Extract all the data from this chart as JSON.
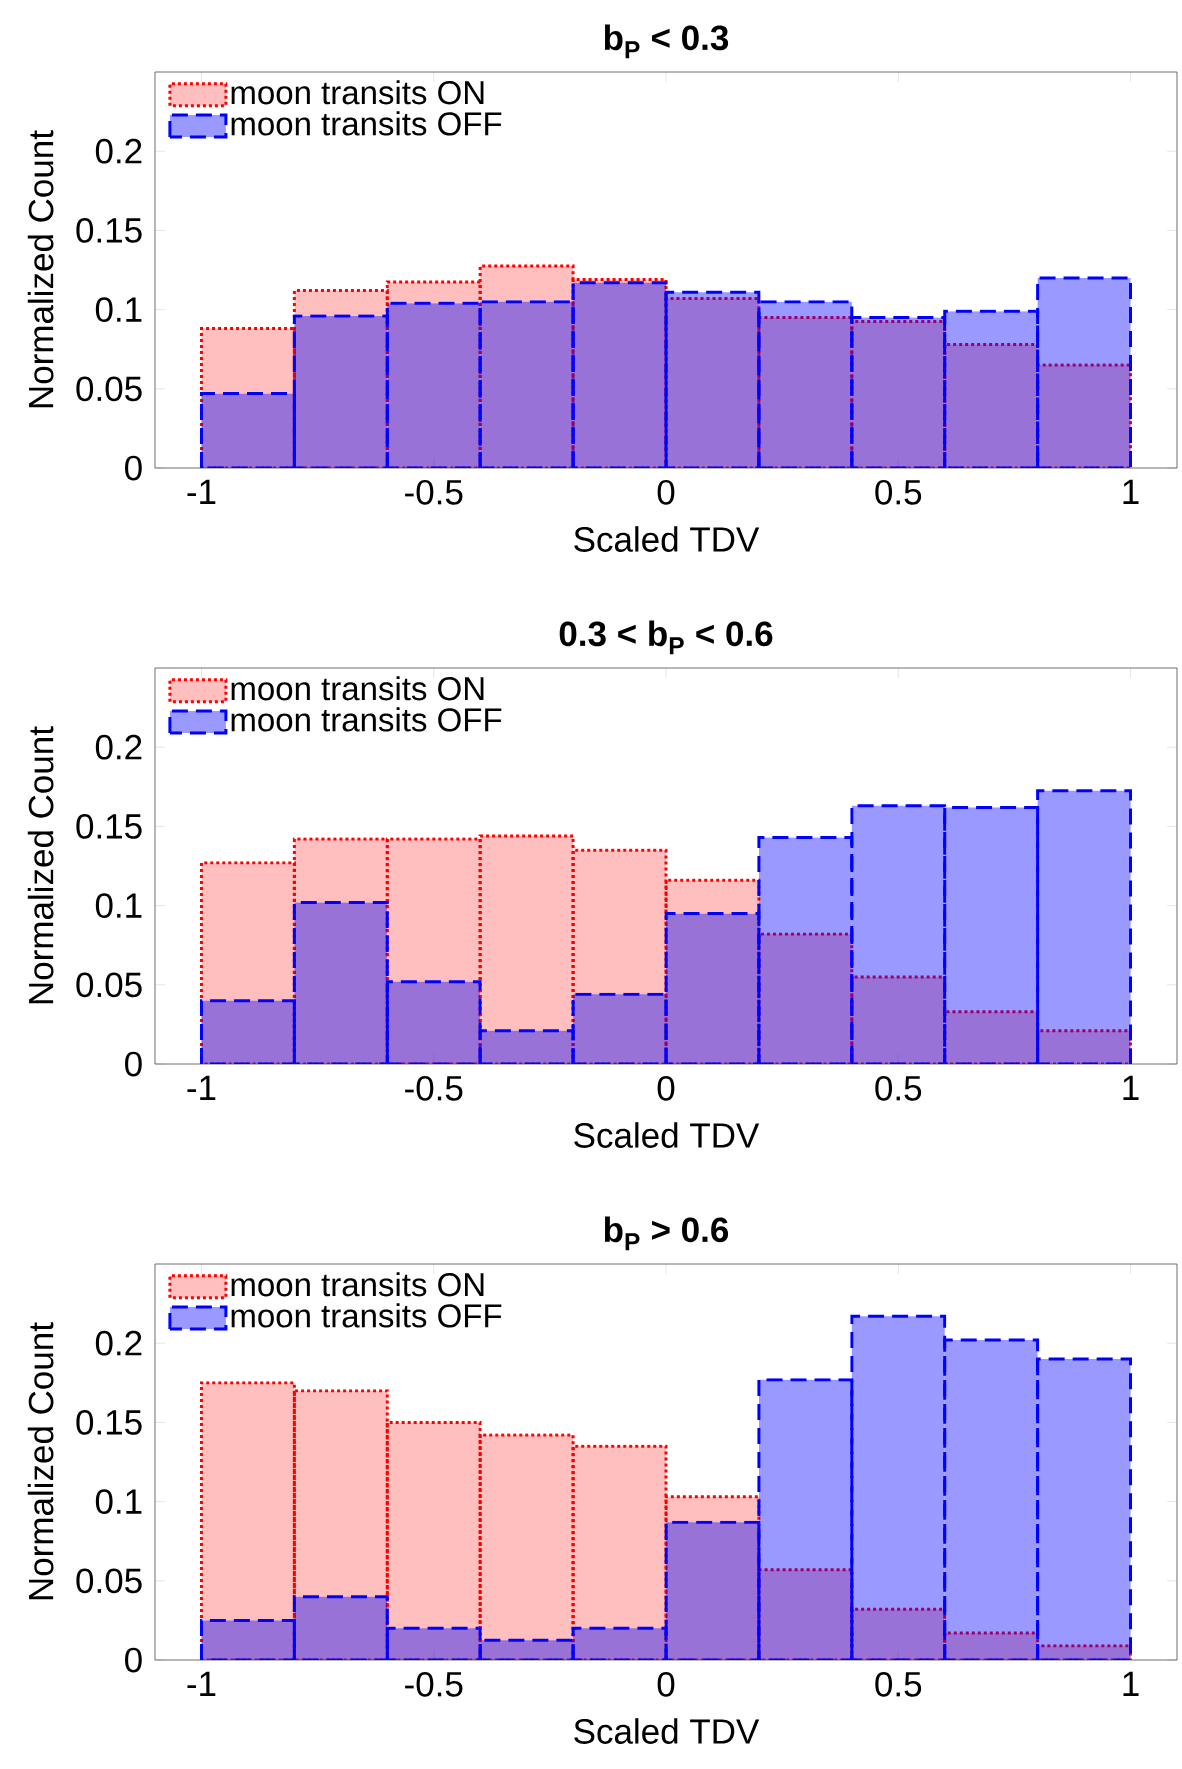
{
  "chart_data": [
    {
      "type": "histogram",
      "title": "b$_{P}$ < 0.3",
      "xlabel": "Scaled TDV",
      "ylabel": "Normalized Count",
      "bins": [
        -1,
        -0.8,
        -0.6,
        -0.4,
        -0.2,
        0,
        0.2,
        0.4,
        0.6,
        0.8,
        1
      ],
      "xlim": [
        -1.1,
        1.1
      ],
      "ylim": [
        0,
        0.25
      ],
      "xticks": [
        -1,
        -0.5,
        0,
        0.5,
        1
      ],
      "yticks": [
        0,
        0.05,
        0.1,
        0.15,
        0.2
      ],
      "legend": "top left",
      "series": [
        {
          "name": "moon transits ON",
          "color": "#ff0000",
          "line_style": "dotted",
          "values": [
            0.088,
            0.112,
            0.1175,
            0.1275,
            0.119,
            0.107,
            0.095,
            0.0925,
            0.078,
            0.065
          ]
        },
        {
          "name": "moon transits OFF",
          "color": "#0000ff",
          "line_style": "dashed",
          "values": [
            0.047,
            0.096,
            0.104,
            0.105,
            0.117,
            0.111,
            0.105,
            0.095,
            0.099,
            0.12
          ]
        }
      ]
    },
    {
      "type": "histogram",
      "title": "0.3 < b$_{P}$ < 0.6",
      "xlabel": "Scaled TDV",
      "ylabel": "Normalized Count",
      "bins": [
        -1,
        -0.8,
        -0.6,
        -0.4,
        -0.2,
        0,
        0.2,
        0.4,
        0.6,
        0.8,
        1
      ],
      "xlim": [
        -1.1,
        1.1
      ],
      "ylim": [
        0,
        0.25
      ],
      "xticks": [
        -1,
        -0.5,
        0,
        0.5,
        1
      ],
      "yticks": [
        0,
        0.05,
        0.1,
        0.15,
        0.2
      ],
      "legend": "top left",
      "series": [
        {
          "name": "moon transits ON",
          "color": "#ff0000",
          "line_style": "dotted",
          "values": [
            0.127,
            0.142,
            0.142,
            0.144,
            0.135,
            0.116,
            0.082,
            0.055,
            0.033,
            0.021
          ]
        },
        {
          "name": "moon transits OFF",
          "color": "#0000ff",
          "line_style": "dashed",
          "values": [
            0.04,
            0.102,
            0.052,
            0.021,
            0.044,
            0.095,
            0.143,
            0.163,
            0.162,
            0.1725
          ]
        }
      ]
    },
    {
      "type": "histogram",
      "title": "b$_{P}$ > 0.6",
      "xlabel": "Scaled TDV",
      "ylabel": "Normalized Count",
      "bins": [
        -1,
        -0.8,
        -0.6,
        -0.4,
        -0.2,
        0,
        0.2,
        0.4,
        0.6,
        0.8,
        1
      ],
      "xlim": [
        -1.1,
        1.1
      ],
      "ylim": [
        0,
        0.25
      ],
      "xticks": [
        -1,
        -0.5,
        0,
        0.5,
        1
      ],
      "yticks": [
        0,
        0.05,
        0.1,
        0.15,
        0.2
      ],
      "legend": "top left",
      "series": [
        {
          "name": "moon transits ON",
          "color": "#ff0000",
          "line_style": "dotted",
          "values": [
            0.175,
            0.17,
            0.15,
            0.142,
            0.135,
            0.103,
            0.057,
            0.032,
            0.017,
            0.009
          ]
        },
        {
          "name": "moon transits OFF",
          "color": "#0000ff",
          "line_style": "dashed",
          "values": [
            0.025,
            0.04,
            0.02,
            0.0125,
            0.02,
            0.087,
            0.177,
            0.217,
            0.202,
            0.19
          ]
        }
      ]
    }
  ]
}
